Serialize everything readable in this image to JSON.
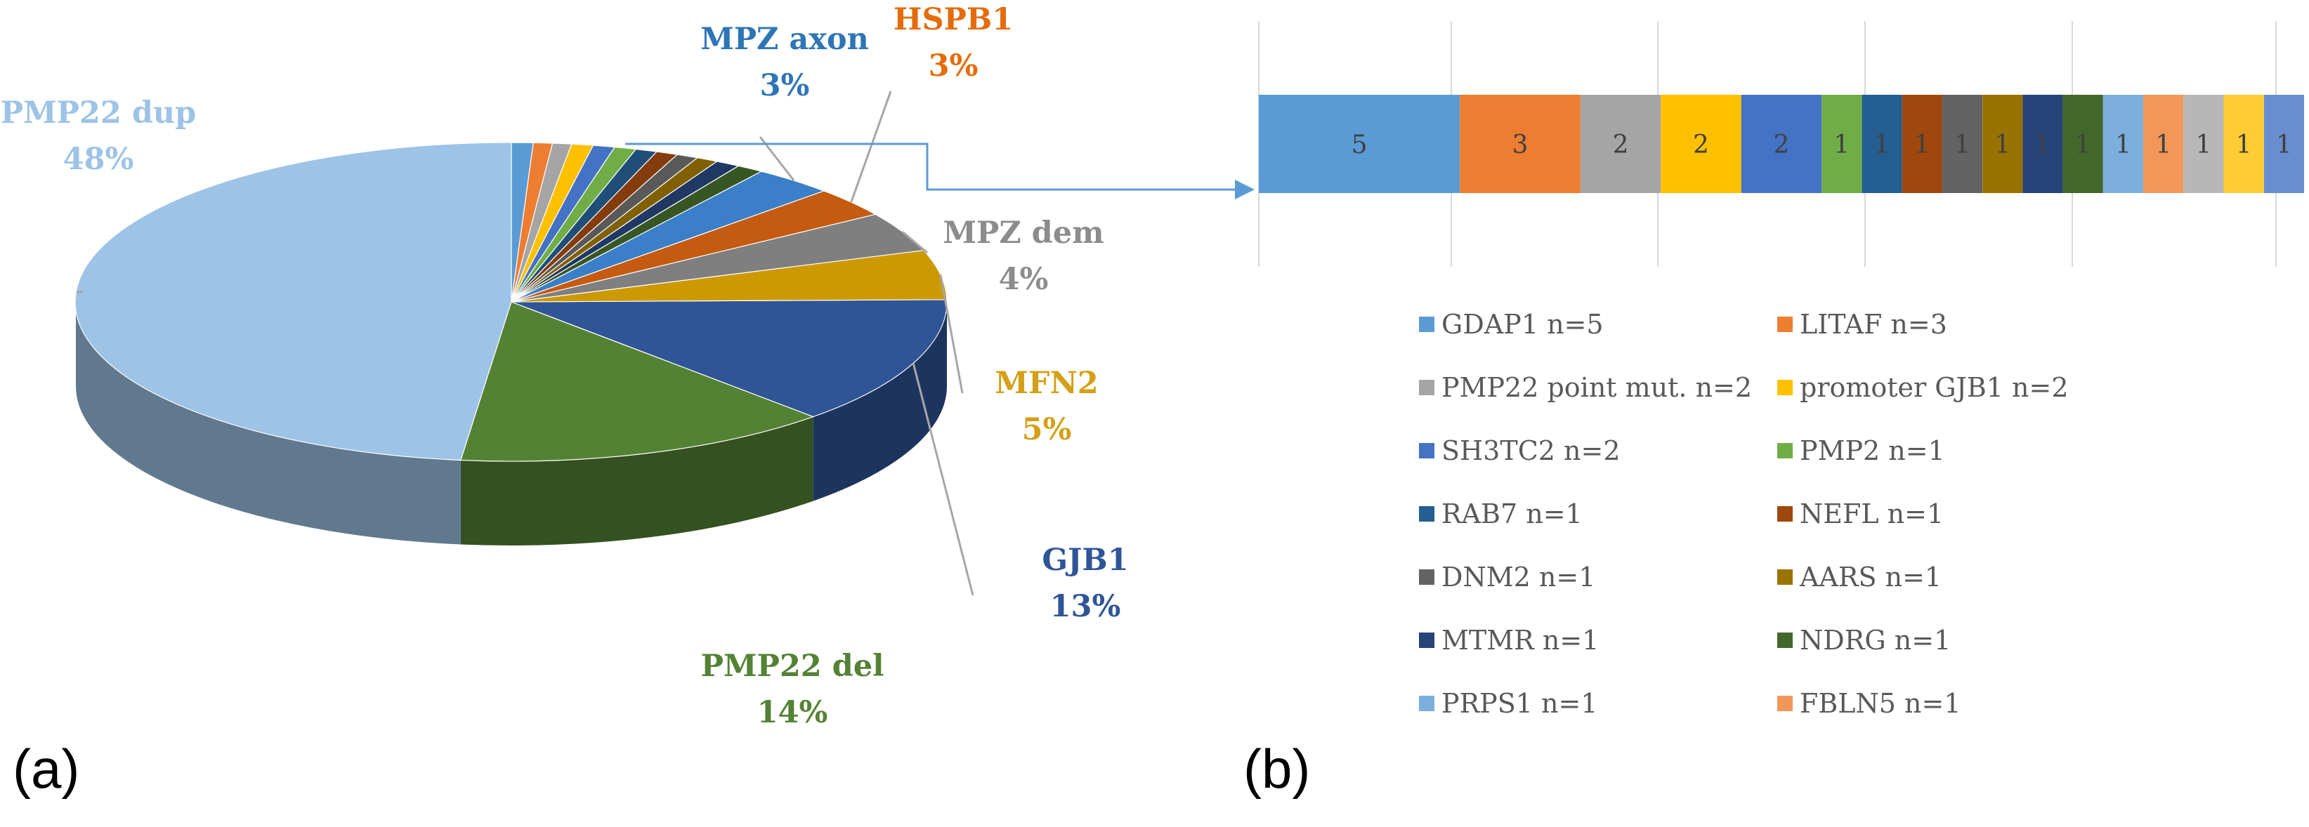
{
  "chart_data": [
    {
      "type": "pie",
      "panel_label": "(a)",
      "slices": [
        {
          "name": "PMP22 dup",
          "percent": 48,
          "color": "#9dc3e6",
          "label": "PMP22 dup",
          "pct_text": "48%",
          "label_color": "#9dc3e6",
          "show_label": true
        },
        {
          "name": "PMP22 del",
          "percent": 14,
          "color": "#548235",
          "label": "PMP22 del",
          "pct_text": "14%",
          "label_color": "#548235",
          "show_label": true
        },
        {
          "name": "GJB1",
          "percent": 13,
          "color": "#2f5597",
          "label": "GJB1",
          "pct_text": "13%",
          "label_color": "#2f5597",
          "show_label": true
        },
        {
          "name": "MFN2",
          "percent": 5,
          "color": "#cc9900",
          "label": "MFN2",
          "pct_text": "5%",
          "label_color": "#d4a017",
          "show_label": true
        },
        {
          "name": "MPZ dem",
          "percent": 4,
          "color": "#7f7f7f",
          "label": "MPZ dem",
          "pct_text": "4%",
          "label_color": "#8c8c8c",
          "show_label": true
        },
        {
          "name": "HSPB1",
          "percent": 3,
          "color": "#c55a11",
          "label": "HSPB1",
          "pct_text": "3%",
          "label_color": "#e46c0a",
          "show_label": true
        },
        {
          "name": "MPZ axon",
          "percent": 3,
          "color": "#3a7fc8",
          "label": "MPZ axon",
          "pct_text": "3%",
          "label_color": "#2e75b6",
          "show_label": true
        },
        {
          "name": "NDRG",
          "percent": 1.0,
          "color": "#375623",
          "show_label": false
        },
        {
          "name": "MTMR",
          "percent": 0.9,
          "color": "#203864",
          "show_label": false
        },
        {
          "name": "AARS",
          "percent": 0.8,
          "color": "#806000",
          "show_label": false
        },
        {
          "name": "DNM2",
          "percent": 0.8,
          "color": "#595959",
          "show_label": false
        },
        {
          "name": "NEFL",
          "percent": 0.8,
          "color": "#843c0c",
          "show_label": false
        },
        {
          "name": "RAB7",
          "percent": 0.8,
          "color": "#1f4e79",
          "show_label": false
        },
        {
          "name": "PMP2",
          "percent": 0.8,
          "color": "#70ad47",
          "show_label": false
        },
        {
          "name": "SH3TC2",
          "percent": 0.8,
          "color": "#4472c4",
          "show_label": false
        },
        {
          "name": "promoter GJB1",
          "percent": 0.8,
          "color": "#ffc000",
          "show_label": false
        },
        {
          "name": "PMP22 point mut.",
          "percent": 0.7,
          "color": "#a5a5a5",
          "show_label": false
        },
        {
          "name": "LITAF",
          "percent": 0.7,
          "color": "#ed7d31",
          "show_label": false
        },
        {
          "name": "GDAP1",
          "percent": 0.8,
          "color": "#5b9bd5",
          "show_label": false
        }
      ]
    },
    {
      "type": "bar",
      "subtype": "stacked-horizontal",
      "panel_label": "(b)",
      "segments": [
        {
          "label": "GDAP1 n=5",
          "value": 5,
          "color": "#5b9bd5"
        },
        {
          "label": "LITAF n=3",
          "value": 3,
          "color": "#ed7d31"
        },
        {
          "label": "PMP22 point mut. n=2",
          "value": 2,
          "color": "#a5a5a5"
        },
        {
          "label": "promoter GJB1 n=2",
          "value": 2,
          "color": "#ffc000"
        },
        {
          "label": "SH3TC2 n=2",
          "value": 2,
          "color": "#4472c4"
        },
        {
          "label": "PMP2 n=1",
          "value": 1,
          "color": "#70ad47"
        },
        {
          "label": "RAB7 n=1",
          "value": 1,
          "color": "#255e91"
        },
        {
          "label": "NEFL n=1",
          "value": 1,
          "color": "#9e480e"
        },
        {
          "label": "DNM2 n=1",
          "value": 1,
          "color": "#636363"
        },
        {
          "label": "AARS n=1",
          "value": 1,
          "color": "#997300"
        },
        {
          "label": "MTMR n=1",
          "value": 1,
          "color": "#264478"
        },
        {
          "label": "NDRG n=1",
          "value": 1,
          "color": "#43682b"
        },
        {
          "label": "PRPS1 n=1",
          "value": 1,
          "color": "#7cafdd"
        },
        {
          "label": "FBLN5 n=1",
          "value": 1,
          "color": "#f1975a"
        },
        {
          "label": "",
          "value": 1,
          "color": "#b7b7b7"
        },
        {
          "label": "",
          "value": 1,
          "color": "#ffcd33"
        },
        {
          "label": "",
          "value": 1,
          "color": "#698ed0"
        }
      ],
      "segment_labels": [
        "5",
        "3",
        "2",
        "2",
        "2",
        "1",
        "1",
        "1",
        "1",
        "1",
        "1",
        "1",
        "1",
        "1",
        "1",
        "1",
        "1"
      ],
      "legend_columns": 2
    }
  ]
}
